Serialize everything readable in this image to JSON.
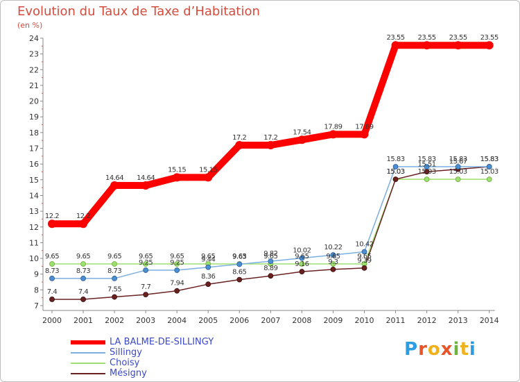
{
  "header": {
    "title": "Evolution du Taux de Taxe d’Habitation",
    "subtitle": "(en %)"
  },
  "logo": {
    "text": "Proxiti",
    "colors": [
      "#2b9de0",
      "#e8552a",
      "#f0b21c",
      "#e8552a",
      "#6db33f",
      "#f0b21c",
      "#2b9de0"
    ]
  },
  "chart_data": {
    "type": "line",
    "title": "Evolution du Taux de Taxe d’Habitation",
    "ylabel": "(en %)",
    "xlabel": "",
    "categories": [
      "2000",
      "2001",
      "2002",
      "2003",
      "2004",
      "2005",
      "2006",
      "2007",
      "2008",
      "2009",
      "2010",
      "2011",
      "2012",
      "2013",
      "2014"
    ],
    "ylim": [
      7,
      24
    ],
    "yticks": [
      7,
      8,
      9,
      10,
      11,
      12,
      13,
      14,
      15,
      16,
      17,
      18,
      19,
      20,
      21,
      22,
      23,
      24
    ],
    "grid": false,
    "legend_position": "bottom-left",
    "series": [
      {
        "name": "LA BALME-DE-SILLINGY",
        "color": "#ff0000",
        "values": [
          12.2,
          12.2,
          14.64,
          14.64,
          15.15,
          15.15,
          17.2,
          17.2,
          17.54,
          17.89,
          17.89,
          23.55,
          23.55,
          23.55,
          23.55
        ],
        "labels": [
          "12.2",
          "12.2",
          "14.64",
          "14.64",
          "15.15",
          "15.15",
          "17.2",
          "17.2",
          "17.54",
          "17.89",
          "17.89",
          "23.55",
          "23.55",
          "23.55",
          "23.55"
        ]
      },
      {
        "name": "Sillingy",
        "color": "#7aaee0",
        "values": [
          8.73,
          8.73,
          8.73,
          9.25,
          9.25,
          9.44,
          9.63,
          9.82,
          10.02,
          10.22,
          10.42,
          15.83,
          15.83,
          15.83,
          15.83
        ],
        "labels": [
          "8.73",
          "8.73",
          "8.73",
          "9.25",
          "9.25",
          "9.44",
          "9.63",
          "9.82",
          "10.02",
          "10.22",
          "10.42",
          "15.83",
          "15.83",
          "15.83",
          "15.83"
        ]
      },
      {
        "name": "Choisy",
        "color": "#9ee070",
        "values": [
          9.65,
          9.65,
          9.65,
          9.65,
          9.65,
          9.65,
          9.65,
          9.65,
          9.65,
          9.65,
          9.65,
          15.03,
          15.03,
          15.03,
          15.03
        ],
        "labels": [
          "9.65",
          "9.65",
          "9.65",
          "9.65",
          "9.65",
          "9.65",
          "9.65",
          "9.65",
          "9.65",
          "9.65",
          "9.65",
          "15.03",
          "15.03",
          "15.03",
          "15.03"
        ]
      },
      {
        "name": "Mésigny",
        "color": "#6b2020",
        "values": [
          7.4,
          7.4,
          7.55,
          7.7,
          7.94,
          8.36,
          8.65,
          8.89,
          9.16,
          9.3,
          9.39,
          15.03,
          15.51,
          15.67,
          15.83
        ],
        "labels": [
          "7.4",
          "7.4",
          "7.55",
          "7.7",
          "7.94",
          "8.36",
          "8.65",
          "8.89",
          "9.16",
          "9.3",
          "9.39",
          "15.03",
          "15.51",
          "15.67",
          "15.83"
        ]
      }
    ]
  }
}
